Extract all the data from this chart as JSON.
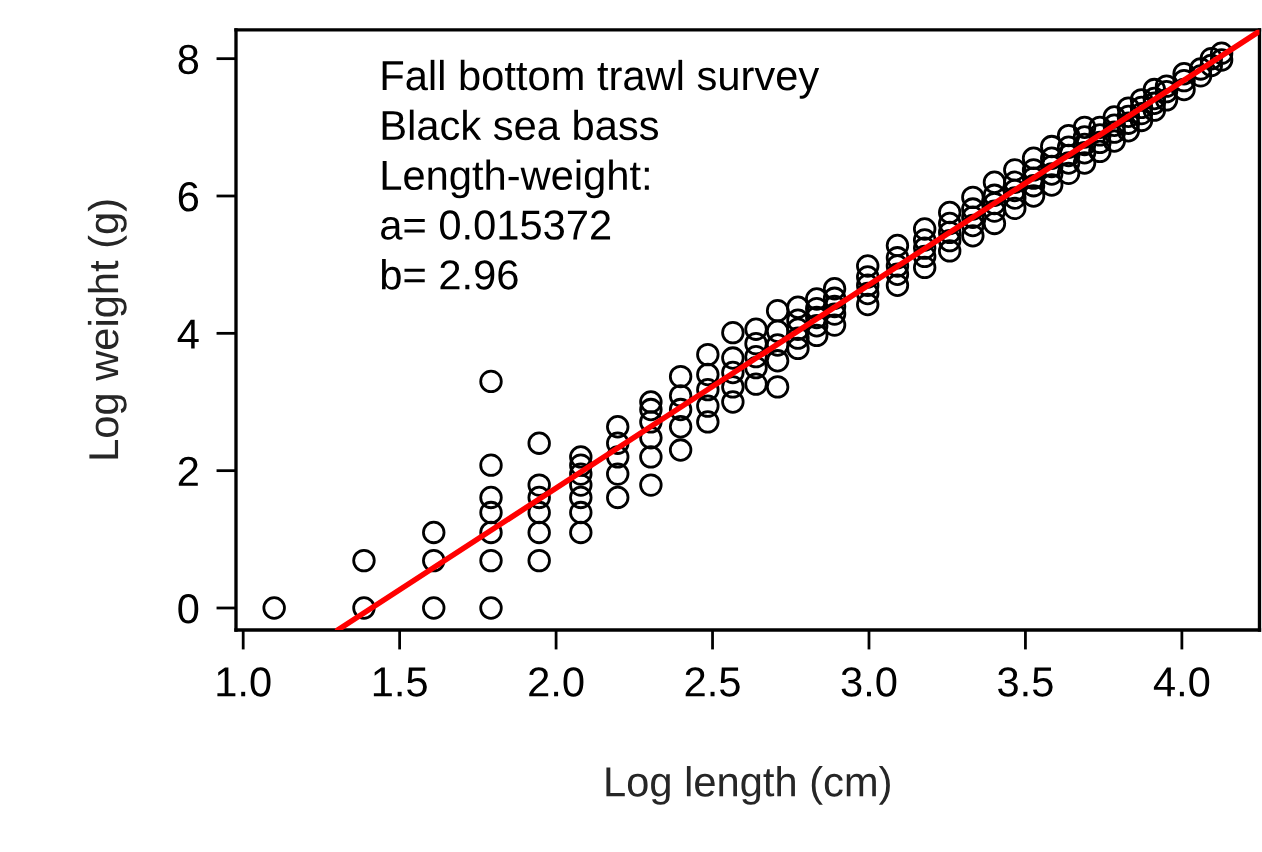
{
  "chart_data": {
    "type": "scatter",
    "xlabel": "Log length (cm)",
    "ylabel": "Log weight (g)",
    "annotations": [
      "Fall bottom trawl survey",
      "Black sea bass",
      "Length-weight:",
      "a= 0.015372",
      "b= 2.96"
    ],
    "xlim": [
      0.977,
      4.248
    ],
    "ylim": [
      -0.32,
      8.42
    ],
    "xticks": [
      {
        "value": 1,
        "label": "1.0"
      },
      {
        "value": 1.5,
        "label": "1.5"
      },
      {
        "value": 2,
        "label": "2.0"
      },
      {
        "value": 2.5,
        "label": "2.5"
      },
      {
        "value": 3,
        "label": "3.0"
      },
      {
        "value": 3.5,
        "label": "3.5"
      },
      {
        "value": 4,
        "label": "4.0"
      }
    ],
    "yticks": [
      0,
      2,
      4,
      6,
      8
    ],
    "grid": false,
    "legend": false,
    "marker": "circle",
    "series": [
      {
        "color": "#000000",
        "x": [
          1.099,
          1.386,
          1.386,
          1.609,
          1.609,
          1.609,
          1.792,
          1.792,
          1.792,
          1.792,
          1.792,
          1.792,
          1.792,
          1.946,
          1.946,
          1.946,
          1.946,
          1.946,
          1.946,
          2.079,
          2.079,
          2.079,
          2.079,
          2.079,
          2.079,
          2.079,
          2.197,
          2.197,
          2.197,
          2.197,
          2.197,
          2.303,
          2.303,
          2.303,
          2.303,
          2.303,
          2.303,
          2.398,
          2.398,
          2.398,
          2.398,
          2.398,
          2.485,
          2.485,
          2.485,
          2.485,
          2.485,
          2.565,
          2.565,
          2.565,
          2.565,
          2.565,
          2.639,
          2.639,
          2.639,
          2.639,
          2.639,
          2.708,
          2.708,
          2.708,
          2.708,
          2.708,
          2.773,
          2.773,
          2.773,
          2.773,
          2.773,
          2.833,
          2.833,
          2.833,
          2.833,
          2.833,
          2.89,
          2.89,
          2.89,
          2.89,
          2.89,
          2.996,
          2.996,
          2.996,
          2.996,
          2.996,
          3.091,
          3.091,
          3.091,
          3.091,
          3.091,
          3.178,
          3.178,
          3.178,
          3.178,
          3.178,
          3.258,
          3.258,
          3.258,
          3.258,
          3.258,
          3.332,
          3.332,
          3.332,
          3.332,
          3.332,
          3.401,
          3.401,
          3.401,
          3.401,
          3.401,
          3.466,
          3.466,
          3.466,
          3.466,
          3.466,
          3.526,
          3.526,
          3.526,
          3.526,
          3.526,
          3.584,
          3.584,
          3.584,
          3.584,
          3.584,
          3.638,
          3.638,
          3.638,
          3.638,
          3.638,
          3.689,
          3.689,
          3.689,
          3.689,
          3.689,
          3.738,
          3.738,
          3.738,
          3.738,
          3.784,
          3.784,
          3.784,
          3.784,
          3.829,
          3.829,
          3.829,
          3.829,
          3.871,
          3.871,
          3.871,
          3.871,
          3.912,
          3.912,
          3.912,
          3.912,
          3.951,
          3.951,
          3.951,
          4.007,
          4.007,
          4.007,
          4.06,
          4.06,
          4.094,
          4.094,
          4.127,
          4.127
        ],
        "values": [
          0,
          0,
          0.69,
          0,
          0.69,
          1.1,
          0,
          0.69,
          1.1,
          1.39,
          1.61,
          2.08,
          3.3,
          0.69,
          1.1,
          1.39,
          1.61,
          1.79,
          2.4,
          1.1,
          1.39,
          1.61,
          1.79,
          1.95,
          2.08,
          2.2,
          1.61,
          1.95,
          2.2,
          2.4,
          2.64,
          1.79,
          2.2,
          2.48,
          2.71,
          2.89,
          3.0,
          2.3,
          2.64,
          2.89,
          3.09,
          3.37,
          2.71,
          2.94,
          3.18,
          3.4,
          3.69,
          3.0,
          3.22,
          3.43,
          3.64,
          4.01,
          3.26,
          3.5,
          3.66,
          3.85,
          4.06,
          3.22,
          3.6,
          3.83,
          4.03,
          4.33,
          3.78,
          3.93,
          4.06,
          4.19,
          4.38,
          3.97,
          4.11,
          4.23,
          4.36,
          4.5,
          4.12,
          4.28,
          4.39,
          4.51,
          4.65,
          4.42,
          4.58,
          4.7,
          4.82,
          4.98,
          4.7,
          4.86,
          4.98,
          5.1,
          5.28,
          4.96,
          5.12,
          5.24,
          5.36,
          5.52,
          5.2,
          5.35,
          5.47,
          5.6,
          5.76,
          5.42,
          5.57,
          5.69,
          5.81,
          5.98,
          5.6,
          5.78,
          5.89,
          6.01,
          6.2,
          5.82,
          5.97,
          6.08,
          6.2,
          6.38,
          6.0,
          6.15,
          6.26,
          6.38,
          6.55,
          6.16,
          6.32,
          6.43,
          6.55,
          6.72,
          6.33,
          6.48,
          6.59,
          6.71,
          6.88,
          6.48,
          6.63,
          6.75,
          6.86,
          7.0,
          6.65,
          6.78,
          6.89,
          7.0,
          6.8,
          6.93,
          7.03,
          7.15,
          6.95,
          7.06,
          7.16,
          7.28,
          7.1,
          7.2,
          7.29,
          7.4,
          7.25,
          7.35,
          7.42,
          7.55,
          7.4,
          7.52,
          7.6,
          7.55,
          7.68,
          7.78,
          7.75,
          7.85,
          7.9,
          8.0,
          7.98,
          8.08
        ]
      },
      {
        "type": "line",
        "color": "#ff0000",
        "marker": "none",
        "line_style": "solid",
        "x": [
          1.302,
          4.248
        ],
        "values": [
          -0.32,
          8.4
        ]
      }
    ]
  }
}
